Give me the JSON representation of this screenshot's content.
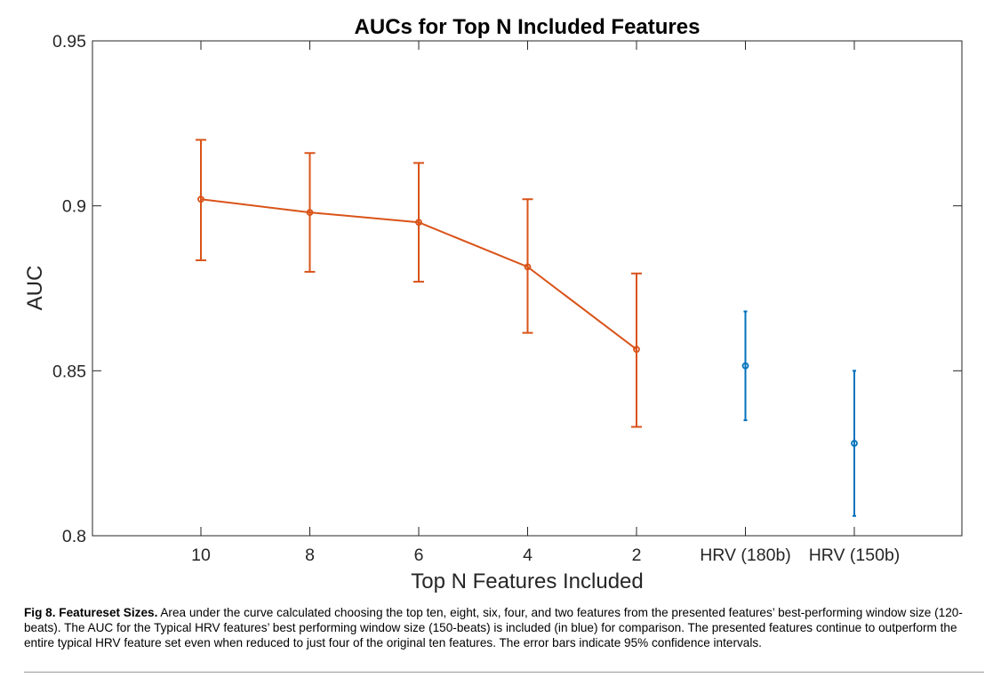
{
  "chart_data": {
    "type": "line",
    "title": "AUCs for Top N Included Features",
    "xlabel": "Top N Features Included",
    "ylabel": "AUC",
    "categories": [
      "10",
      "8",
      "6",
      "4",
      "2",
      "HRV (180b)",
      "HRV (150b)"
    ],
    "ylim": [
      0.8,
      0.95
    ],
    "yticks": [
      "0.8",
      "0.85",
      "0.9",
      "0.95"
    ],
    "grid": false,
    "series": [
      {
        "color": "#d95319",
        "connected": true,
        "points": [
          {
            "x": "10",
            "y": 0.902,
            "lower": 0.8835,
            "upper": 0.92
          },
          {
            "x": "8",
            "y": 0.898,
            "lower": 0.88,
            "upper": 0.916
          },
          {
            "x": "6",
            "y": 0.895,
            "lower": 0.877,
            "upper": 0.913
          },
          {
            "x": "4",
            "y": 0.8815,
            "lower": 0.8615,
            "upper": 0.902
          },
          {
            "x": "2",
            "y": 0.8565,
            "lower": 0.833,
            "upper": 0.8795
          }
        ]
      },
      {
        "color": "#0072bd",
        "connected": false,
        "points": [
          {
            "x": "HRV (180b)",
            "y": 0.8515,
            "lower": 0.835,
            "upper": 0.868
          },
          {
            "x": "HRV (150b)",
            "y": 0.828,
            "lower": 0.806,
            "upper": 0.85
          }
        ]
      }
    ]
  },
  "caption": {
    "label": "Fig 8. Featureset Sizes.",
    "text": " Area under the curve calculated choosing the top ten, eight, six, four, and two features from the presented features’ best-performing window size (120-beats). The AUC for the Typical HRV features’ best performing window size (150-beats) is included (in blue) for comparison. The presented features continue to outperform the entire typical HRV feature set even when reduced to just four of the original ten features. The error bars indicate 95% confidence intervals."
  }
}
